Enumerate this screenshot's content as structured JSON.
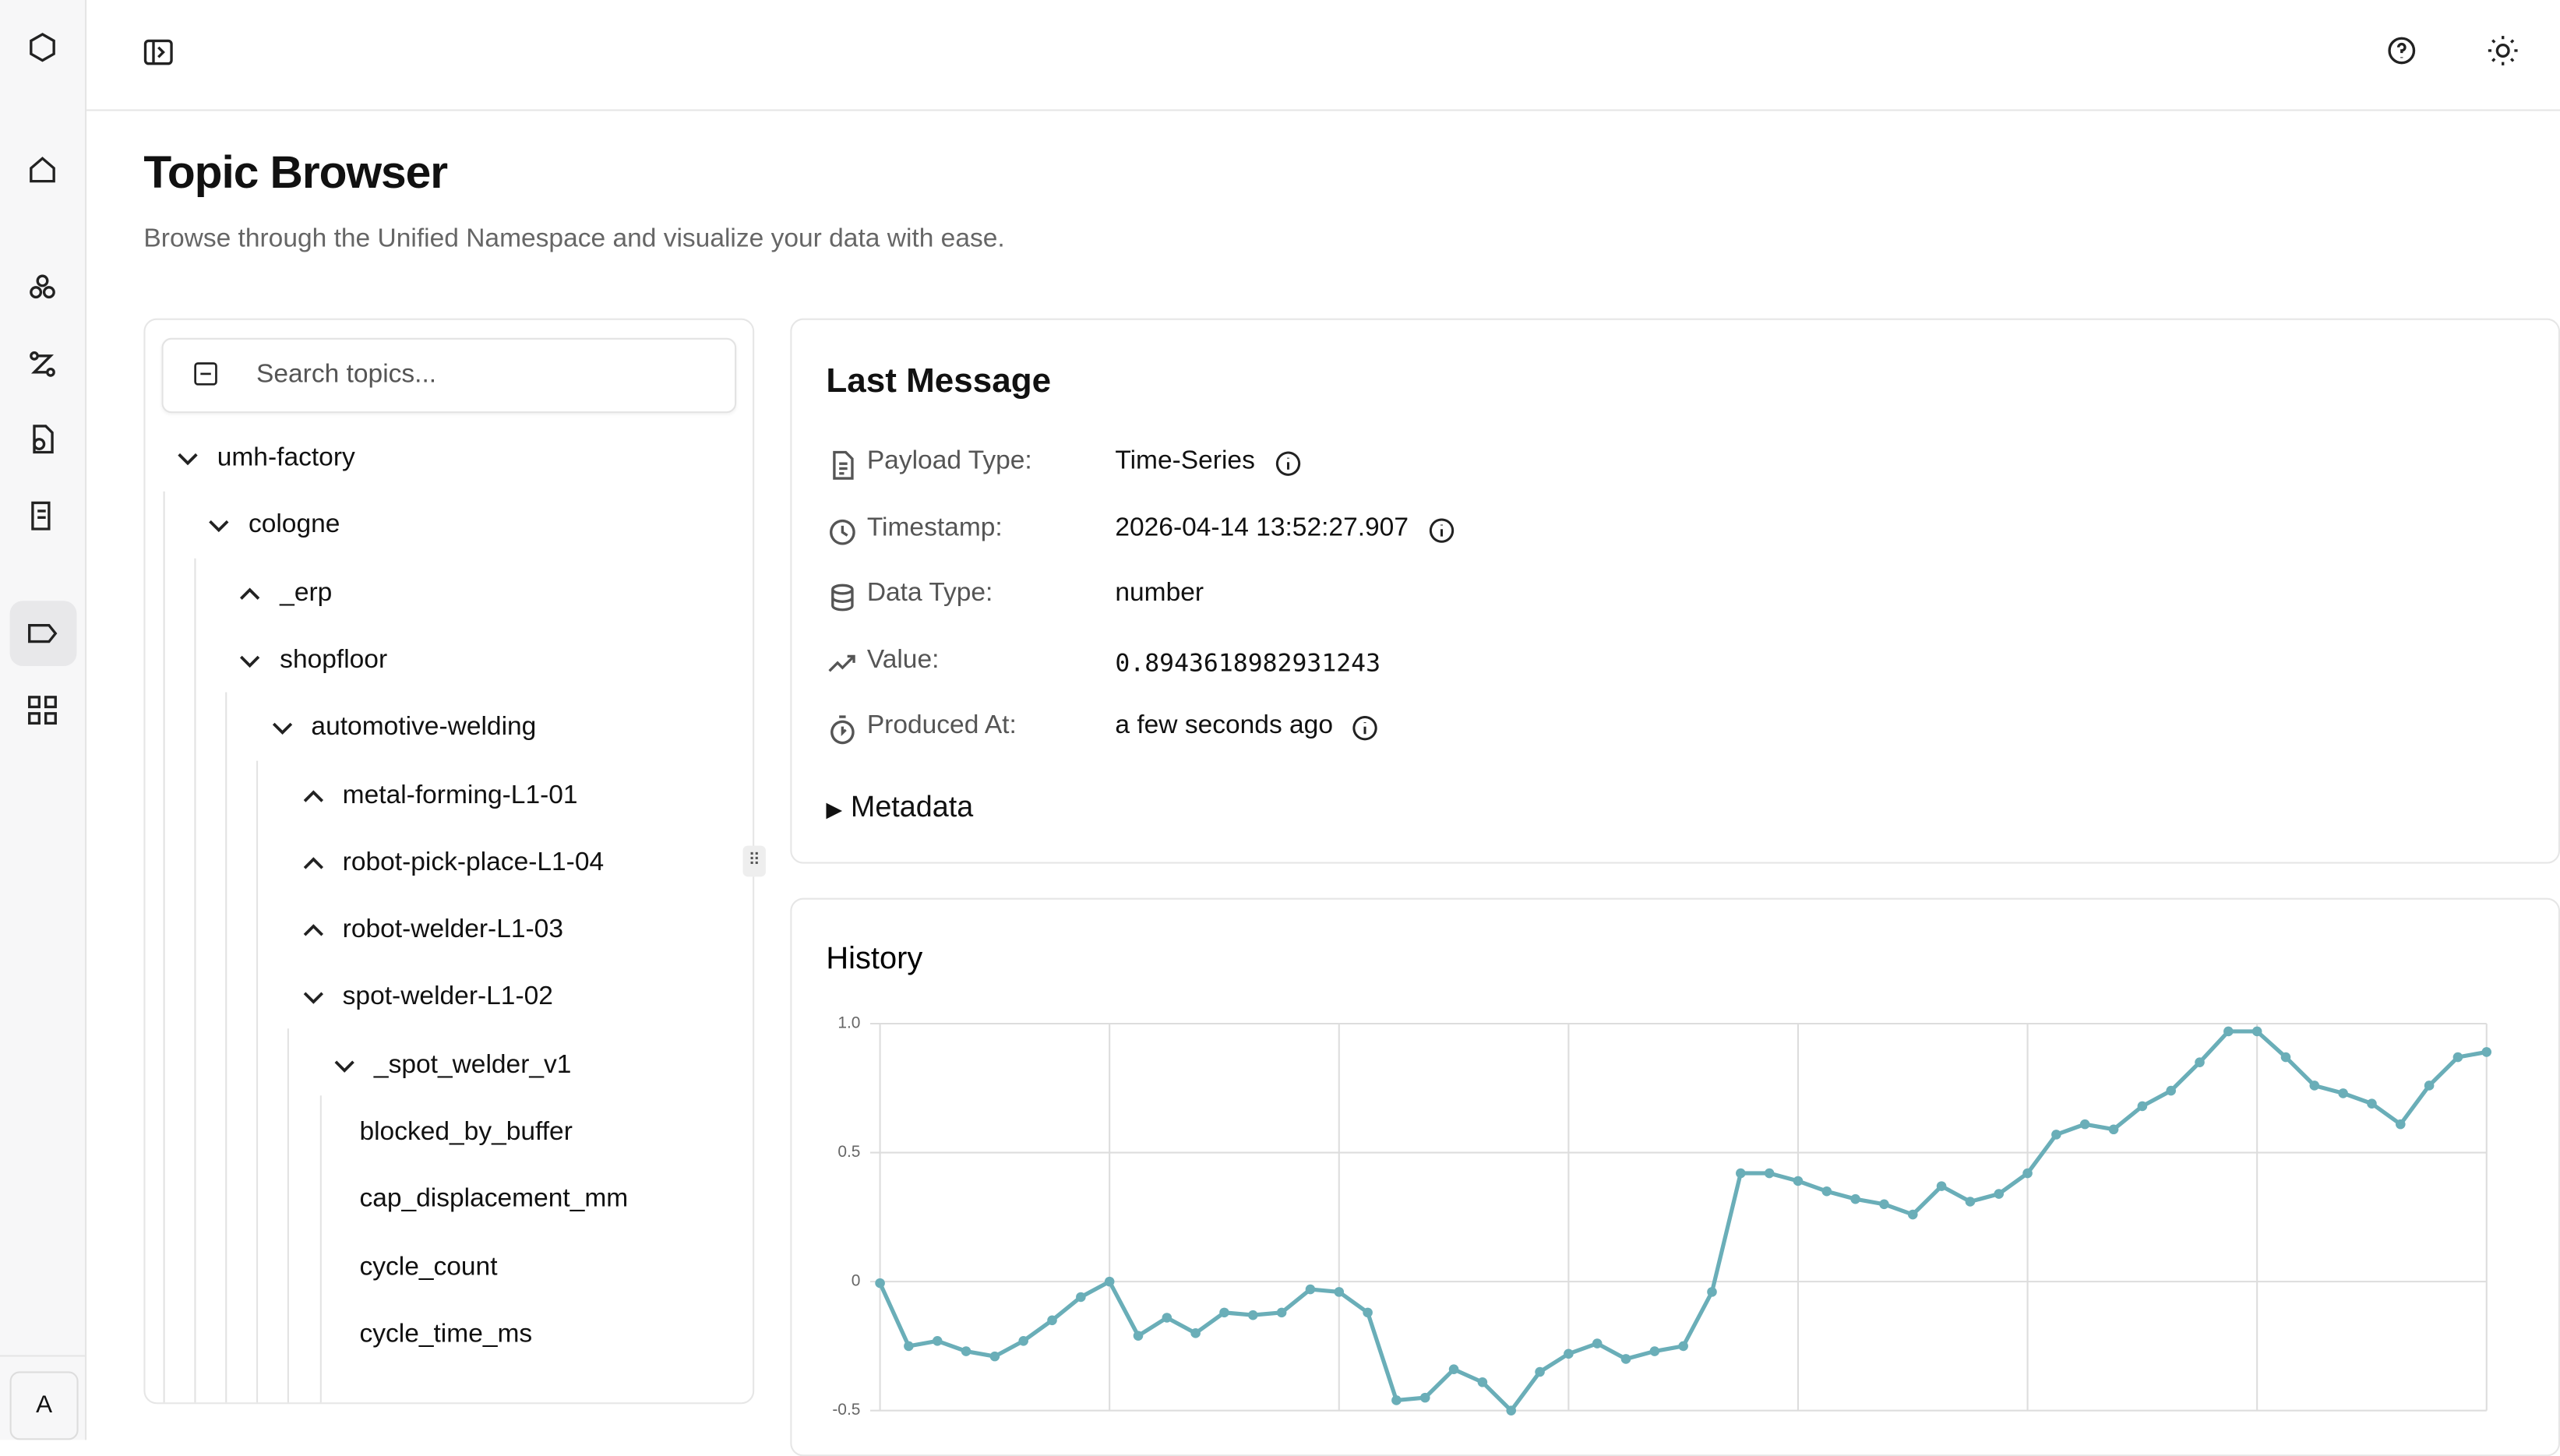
{
  "page": {
    "title": "Topic Browser",
    "subtitle": "Browse through the Unified Namespace and visualize your data with ease.",
    "search_placeholder": "Search topics...",
    "avatar": "A"
  },
  "tree": [
    {
      "label": "umh-factory",
      "depth": 0,
      "expanded": true
    },
    {
      "label": "cologne",
      "depth": 1,
      "expanded": true
    },
    {
      "label": "_erp",
      "depth": 2,
      "expanded": false
    },
    {
      "label": "shopfloor",
      "depth": 2,
      "expanded": true
    },
    {
      "label": "automotive-welding",
      "depth": 3,
      "expanded": true
    },
    {
      "label": "metal-forming-L1-01",
      "depth": 4,
      "expanded": false
    },
    {
      "label": "robot-pick-place-L1-04",
      "depth": 4,
      "expanded": false
    },
    {
      "label": "robot-welder-L1-03",
      "depth": 4,
      "expanded": false
    },
    {
      "label": "spot-welder-L1-02",
      "depth": 4,
      "expanded": true
    },
    {
      "label": "_spot_welder_v1",
      "depth": 5,
      "expanded": true
    },
    {
      "label": "blocked_by_buffer",
      "depth": 6,
      "expanded": null
    },
    {
      "label": "cap_displacement_mm",
      "depth": 6,
      "expanded": null
    },
    {
      "label": "cycle_count",
      "depth": 6,
      "expanded": null
    },
    {
      "label": "cycle_time_ms",
      "depth": 6,
      "expanded": null
    }
  ],
  "last_message": {
    "title": "Last Message",
    "fields": [
      {
        "label": "Payload Type:",
        "value": "Time-Series"
      },
      {
        "label": "Timestamp:",
        "value": "2026-04-14 13:52:27.907"
      },
      {
        "label": "Data Type:",
        "value": "number"
      },
      {
        "label": "Value:",
        "value": "0.8943618982931243"
      },
      {
        "label": "Produced At:",
        "value": "a few seconds ago"
      }
    ],
    "metadata": "Metadata"
  },
  "chart_data": {
    "type": "line",
    "title": "History",
    "color": "#6aaeb8",
    "grid": true,
    "values": [
      -0.006,
      -0.25,
      -0.23,
      -0.27,
      -0.29,
      -0.23,
      -0.15,
      -0.06,
      0.0,
      -0.21,
      -0.14,
      -0.2,
      -0.12,
      -0.13,
      -0.12,
      -0.03,
      -0.04,
      -0.12,
      -0.46,
      -0.45,
      -0.34,
      -0.39,
      -0.5,
      -0.35,
      -0.28,
      -0.24,
      -0.3,
      -0.27,
      -0.25,
      -0.04,
      0.42,
      0.42,
      0.39,
      0.35,
      0.32,
      0.3,
      0.26,
      0.37,
      0.31,
      0.34,
      0.42,
      0.57,
      0.61,
      0.59,
      0.68,
      0.74,
      0.85,
      0.97,
      0.97,
      0.87,
      0.76,
      0.73,
      0.69,
      0.61,
      0.76,
      0.87,
      0.89
    ],
    "ylim": [
      -0.5,
      1.0
    ],
    "yticks": [
      {
        "value": 1.0,
        "label": "1.0"
      },
      0.5,
      0,
      -0.5
    ]
  }
}
